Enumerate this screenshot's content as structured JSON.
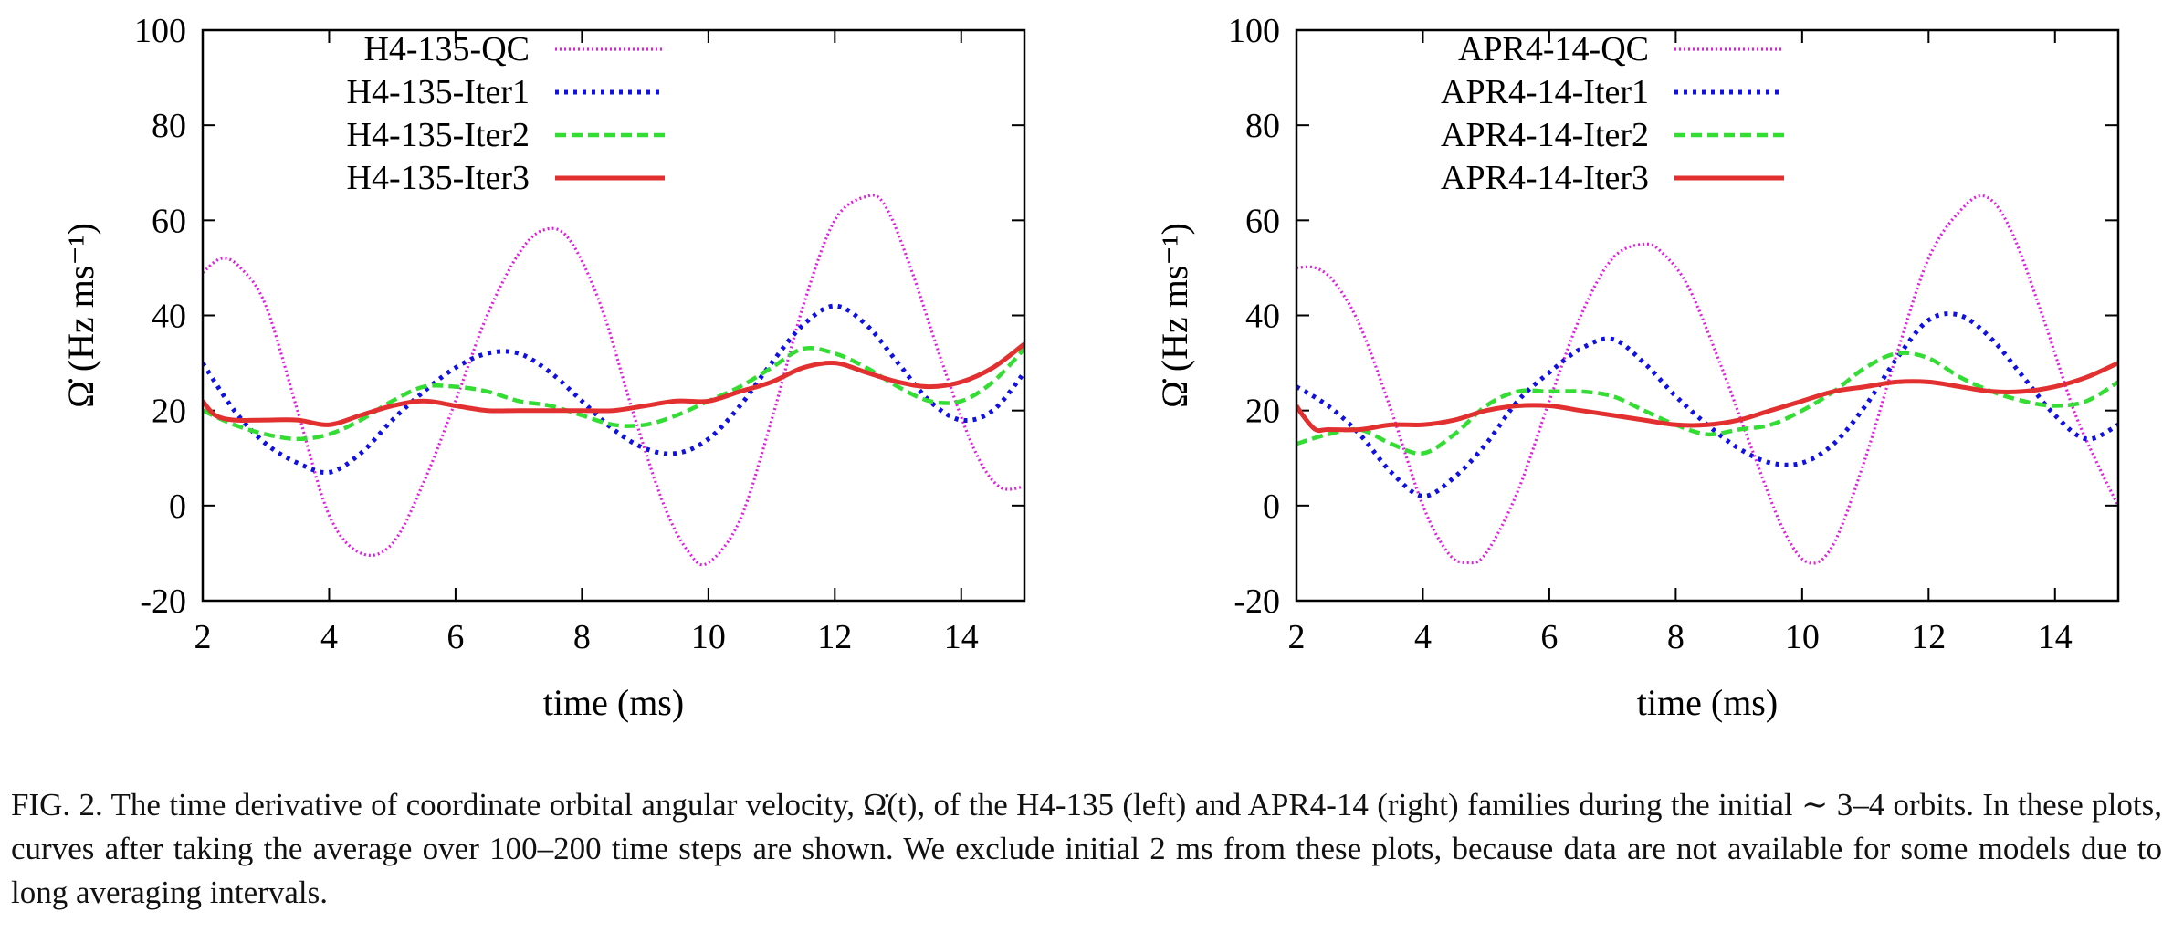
{
  "chart_data": [
    {
      "type": "line",
      "xlabel": "time (ms)",
      "ylabel": "Ω̇ (Hz ms⁻¹)",
      "xlim": [
        2,
        15
      ],
      "ylim": [
        -20,
        100
      ],
      "xticks": [
        "2",
        "4",
        "6",
        "8",
        "10",
        "12",
        "14"
      ],
      "yticks": [
        "-20",
        "0",
        "20",
        "40",
        "60",
        "80",
        "100"
      ],
      "legend_position": "top-right",
      "series": [
        {
          "name": "H4-135-QC",
          "color": "#e020e0",
          "style": "dotted-fine",
          "x": [
            2.0,
            2.3,
            2.6,
            3.0,
            3.5,
            4.0,
            4.5,
            5.0,
            5.5,
            6.0,
            6.5,
            7.0,
            7.4,
            7.8,
            8.3,
            8.8,
            9.3,
            9.7,
            10.0,
            10.5,
            11.0,
            11.5,
            12.0,
            12.5,
            12.8,
            13.2,
            13.7,
            14.2,
            14.6,
            15.0
          ],
          "y": [
            49,
            52,
            50,
            42,
            20,
            -2,
            -10,
            -8,
            5,
            22,
            40,
            53,
            58,
            56,
            42,
            20,
            0,
            -10,
            -12,
            -3,
            18,
            42,
            60,
            65,
            63,
            50,
            30,
            12,
            4,
            4
          ]
        },
        {
          "name": "H4-135-Iter1",
          "color": "#1010e0",
          "style": "dotted",
          "x": [
            2.0,
            2.5,
            3.0,
            3.5,
            4.0,
            4.5,
            5.0,
            5.5,
            6.0,
            6.5,
            7.0,
            7.5,
            8.0,
            8.5,
            9.0,
            9.5,
            10.0,
            10.5,
            11.0,
            11.5,
            12.0,
            12.5,
            13.0,
            13.5,
            14.0,
            14.5,
            15.0
          ],
          "y": [
            30,
            20,
            13,
            9,
            7,
            11,
            18,
            24,
            29,
            32,
            32,
            28,
            22,
            16,
            12,
            11,
            14,
            21,
            30,
            38,
            42,
            38,
            30,
            22,
            18,
            20,
            28
          ]
        },
        {
          "name": "H4-135-Iter2",
          "color": "#33dd33",
          "style": "dashed",
          "x": [
            2.0,
            2.5,
            3.0,
            3.5,
            4.0,
            4.5,
            5.0,
            5.5,
            6.0,
            6.5,
            7.0,
            7.5,
            8.0,
            8.5,
            9.0,
            9.5,
            10.0,
            10.5,
            11.0,
            11.5,
            12.0,
            12.5,
            13.0,
            13.5,
            14.0,
            14.5,
            15.0
          ],
          "y": [
            20,
            17,
            15,
            14,
            15,
            18,
            22,
            25,
            25,
            24,
            22,
            21,
            19,
            17,
            17,
            19,
            22,
            25,
            29,
            33,
            32,
            29,
            25,
            22,
            22,
            26,
            33
          ]
        },
        {
          "name": "H4-135-Iter3",
          "color": "#e23030",
          "style": "solid",
          "x": [
            2.0,
            2.2,
            2.5,
            3.0,
            3.5,
            4.0,
            4.5,
            5.0,
            5.5,
            6.0,
            6.5,
            7.0,
            7.5,
            8.0,
            8.5,
            9.0,
            9.5,
            10.0,
            10.5,
            11.0,
            11.5,
            12.0,
            12.5,
            13.0,
            13.5,
            14.0,
            14.5,
            15.0
          ],
          "y": [
            22,
            19,
            18,
            18,
            18,
            17,
            19,
            21,
            22,
            21,
            20,
            20,
            20,
            20,
            20,
            21,
            22,
            22,
            24,
            26,
            29,
            30,
            28,
            26,
            25,
            26,
            29,
            34
          ]
        }
      ]
    },
    {
      "type": "line",
      "xlabel": "time (ms)",
      "ylabel": "Ω̇ (Hz ms⁻¹)",
      "xlim": [
        2,
        15
      ],
      "ylim": [
        -20,
        100
      ],
      "xticks": [
        "2",
        "4",
        "6",
        "8",
        "10",
        "12",
        "14"
      ],
      "yticks": [
        "-20",
        "0",
        "20",
        "40",
        "60",
        "80",
        "100"
      ],
      "legend_position": "top-right",
      "series": [
        {
          "name": "APR4-14-QC",
          "color": "#e020e0",
          "style": "dotted-fine",
          "x": [
            2.0,
            2.3,
            2.6,
            3.0,
            3.5,
            4.0,
            4.4,
            4.7,
            5.0,
            5.5,
            6.0,
            6.5,
            7.0,
            7.5,
            7.8,
            8.2,
            8.7,
            9.2,
            9.7,
            10.1,
            10.5,
            11.0,
            11.5,
            12.0,
            12.5,
            12.9,
            13.3,
            13.8,
            14.3,
            14.7,
            15.0
          ],
          "y": [
            50,
            50,
            47,
            38,
            20,
            0,
            -10,
            -12,
            -10,
            3,
            22,
            40,
            52,
            55,
            53,
            46,
            30,
            12,
            -5,
            -12,
            -8,
            10,
            32,
            52,
            62,
            65,
            58,
            40,
            20,
            8,
            0
          ]
        },
        {
          "name": "APR4-14-Iter1",
          "color": "#1010e0",
          "style": "dotted",
          "x": [
            2.0,
            2.5,
            3.0,
            3.5,
            4.0,
            4.5,
            5.0,
            5.5,
            6.0,
            6.5,
            7.0,
            7.5,
            8.0,
            8.5,
            9.0,
            9.5,
            10.0,
            10.5,
            11.0,
            11.5,
            12.0,
            12.5,
            13.0,
            13.5,
            14.0,
            14.5,
            15.0
          ],
          "y": [
            25,
            21,
            15,
            7,
            2,
            6,
            13,
            22,
            28,
            33,
            35,
            30,
            23,
            17,
            12,
            9,
            9,
            13,
            21,
            31,
            39,
            40,
            35,
            27,
            19,
            14,
            17
          ]
        },
        {
          "name": "APR4-14-Iter2",
          "color": "#33dd33",
          "style": "dashed",
          "x": [
            2.0,
            2.5,
            3.0,
            3.5,
            4.0,
            4.5,
            5.0,
            5.5,
            6.0,
            6.5,
            7.0,
            7.5,
            8.0,
            8.5,
            9.0,
            9.5,
            10.0,
            10.5,
            11.0,
            11.5,
            12.0,
            12.5,
            13.0,
            13.5,
            14.0,
            14.5,
            15.0
          ],
          "y": [
            13,
            15,
            16,
            13,
            11,
            15,
            21,
            24,
            24,
            24,
            23,
            20,
            17,
            15,
            16,
            17,
            20,
            24,
            29,
            32,
            31,
            27,
            24,
            22,
            21,
            22,
            26
          ]
        },
        {
          "name": "APR4-14-Iter3",
          "color": "#e23030",
          "style": "solid",
          "x": [
            2.0,
            2.1,
            2.3,
            2.5,
            3.0,
            3.5,
            4.0,
            4.5,
            5.0,
            5.5,
            6.0,
            6.5,
            7.0,
            7.5,
            8.0,
            8.5,
            9.0,
            9.5,
            10.0,
            10.5,
            11.0,
            11.5,
            12.0,
            12.5,
            13.0,
            13.5,
            14.0,
            14.5,
            15.0
          ],
          "y": [
            21,
            19,
            16,
            16,
            16,
            17,
            17,
            18,
            20,
            21,
            21,
            20,
            19,
            18,
            17,
            17,
            18,
            20,
            22,
            24,
            25,
            26,
            26,
            25,
            24,
            24,
            25,
            27,
            30
          ]
        }
      ]
    }
  ],
  "caption": {
    "text": "FIG. 2.  The time derivative of coordinate orbital angular velocity, Ω̇(t), of the H4-135 (left) and APR4-14 (right) families during the initial ∼ 3–4 orbits. In these plots, curves after taking the average over 100–200 time steps are shown. We exclude initial 2 ms from these plots, because data are not available for some models due to long averaging intervals."
  }
}
